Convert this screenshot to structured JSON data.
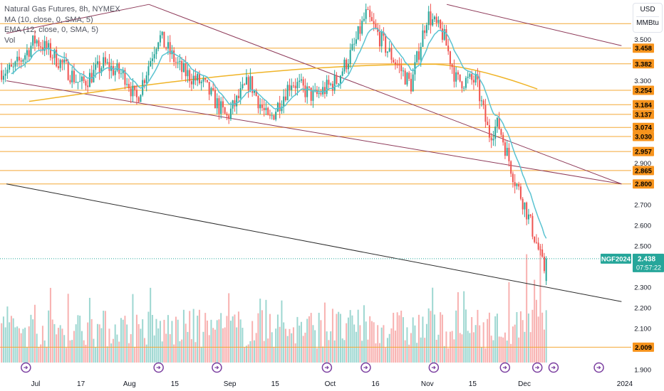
{
  "legend": {
    "symbol": "Natural Gas Futures, 8h, NYMEX",
    "ma": "MA (10, close, 0, SMA, 5)",
    "ema": "EMA (12, close, 0, SMA, 5)",
    "vol": "Vol"
  },
  "unit": {
    "currency": "USD",
    "unit": "MMBtu"
  },
  "colors": {
    "up": "#26a69a",
    "down": "#ef5350",
    "ema": "#5ac3d1",
    "ma": "#f0b428",
    "hline": "#f4a836",
    "trend": "#8e3a59",
    "support": "#2b2b2b",
    "price_tag": "#26a69a",
    "level_tag": "#f7941d"
  },
  "chart_data": {
    "type": "candlestick",
    "x_ticks": [
      "Jul",
      "17",
      "Aug",
      "15",
      "Sep",
      "15",
      "Oct",
      "16",
      "Nov",
      "15",
      "Dec",
      "2024"
    ],
    "y_ticks": [
      "3.500",
      "3.300",
      "2.900",
      "2.700",
      "2.600",
      "2.500",
      "2.300",
      "2.200",
      "2.100",
      "1.900"
    ],
    "ylim": [
      1.9,
      3.65
    ],
    "levels": [
      "3.577",
      "3.458",
      "3.382",
      "3.254",
      "3.184",
      "3.137",
      "3.074",
      "3.030",
      "2.957",
      "2.865",
      "2.800",
      "2.009"
    ],
    "current_price": {
      "symbol": "NGF2024",
      "value": "2.438",
      "countdown": "07:57:22"
    },
    "trendlines": [
      {
        "name": "upper-resistance",
        "from": [
          "Jun 24",
          3.53
        ],
        "to": [
          "Aug 7",
          3.67
        ]
      },
      {
        "name": "upper-channel",
        "from": [
          "Aug 7",
          3.67
        ],
        "to": [
          "Dec 31",
          2.8
        ]
      },
      {
        "name": "far-resistance",
        "from": [
          "Nov 7",
          3.67
        ],
        "to": [
          "Dec 31",
          3.47
        ]
      },
      {
        "name": "mid-channel",
        "from": [
          "Jun 24",
          3.3
        ],
        "to": [
          "Dec 31",
          2.8
        ]
      },
      {
        "name": "support",
        "from": [
          "Jun 24",
          2.8
        ],
        "to": [
          "Dec 31",
          2.23
        ]
      }
    ],
    "ma_line": {
      "from": "Jul 1",
      "to": "Dec 5",
      "start": 3.2,
      "peak": 3.38,
      "end": 3.26
    },
    "price_path": [
      [
        "Jun 26",
        3.35
      ],
      [
        "Jul 3",
        3.5
      ],
      [
        "Jul 10",
        3.4
      ],
      [
        "Jul 17",
        3.28
      ],
      [
        "Jul 24",
        3.38
      ],
      [
        "Jul 31",
        3.32
      ],
      [
        "Aug 3",
        3.2
      ],
      [
        "Aug 10",
        3.52
      ],
      [
        "Aug 17",
        3.35
      ],
      [
        "Aug 24",
        3.28
      ],
      [
        "Aug 31",
        3.12
      ],
      [
        "Sep 7",
        3.3
      ],
      [
        "Sep 13",
        3.1
      ],
      [
        "Sep 20",
        3.3
      ],
      [
        "Sep 27",
        3.22
      ],
      [
        "Oct 4",
        3.3
      ],
      [
        "Oct 9",
        3.45
      ],
      [
        "Oct 13",
        3.62
      ],
      [
        "Oct 20",
        3.44
      ],
      [
        "Oct 27",
        3.28
      ],
      [
        "Nov 1",
        3.62
      ],
      [
        "Nov 6",
        3.52
      ],
      [
        "Nov 10",
        3.3
      ],
      [
        "Nov 16",
        3.3
      ],
      [
        "Nov 20",
        3.04
      ],
      [
        "Nov 23",
        3.09
      ],
      [
        "Nov 28",
        2.82
      ],
      [
        "Dec 1",
        2.7
      ],
      [
        "Dec 5",
        2.5
      ],
      [
        "Dec 7",
        2.38
      ],
      [
        "Dec 8",
        2.44
      ]
    ],
    "events_at": [
      "Jun 30",
      "Aug 10",
      "Aug 28",
      "Oct 1",
      "Oct 13",
      "Nov 3",
      "Nov 25",
      "Dec 5",
      "Dec 10",
      "Dec 24"
    ]
  }
}
